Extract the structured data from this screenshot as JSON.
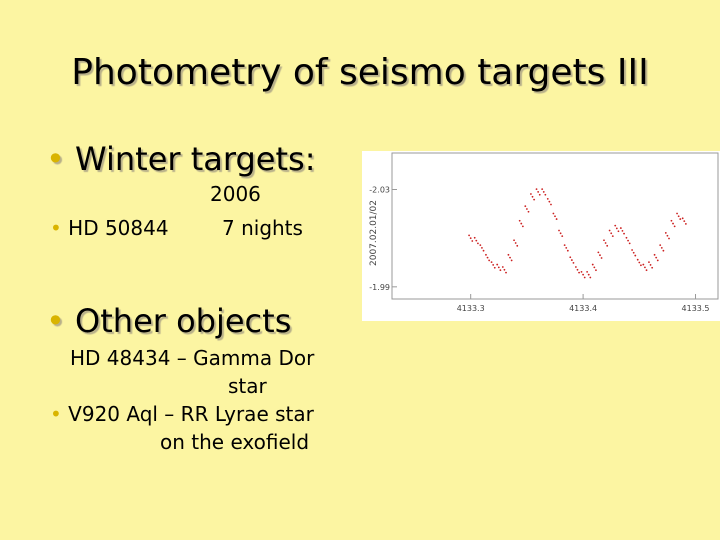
{
  "slide": {
    "title": "Photometry of seismo targets III",
    "bullet1": "Winter targets:",
    "year": "2006",
    "star1": "HD 50844",
    "nights": "7 nights",
    "bullet2": "Other objects",
    "line1": "HD 48434 – Gamma Dor",
    "line2": "star",
    "line3": "V920 Aql – RR Lyrae star",
    "line4": "on the exofield"
  },
  "chart_data": {
    "type": "scatter",
    "ylabel": "2007.02.01/02",
    "xticks": [
      "4133.3",
      "4133.4",
      "4133.5"
    ],
    "yticks": [
      "-2.03",
      "-1.99"
    ],
    "series": [
      {
        "color": "#cc2222",
        "points": [
          [
            4133.3,
            -2.01
          ],
          [
            4133.305,
            -2.009
          ],
          [
            4133.31,
            -2.006
          ],
          [
            4133.315,
            -2.002
          ],
          [
            4133.32,
            -1.999
          ],
          [
            4133.325,
            -1.998
          ],
          [
            4133.33,
            -1.997
          ],
          [
            4133.335,
            -2.002
          ],
          [
            4133.34,
            -2.008
          ],
          [
            4133.345,
            -2.016
          ],
          [
            4133.35,
            -2.022
          ],
          [
            4133.355,
            -2.027
          ],
          [
            4133.36,
            -2.029
          ],
          [
            4133.365,
            -2.029
          ],
          [
            4133.37,
            -2.025
          ],
          [
            4133.375,
            -2.019
          ],
          [
            4133.38,
            -2.012
          ],
          [
            4133.385,
            -2.006
          ],
          [
            4133.39,
            -2.001
          ],
          [
            4133.395,
            -1.997
          ],
          [
            4133.4,
            -1.995
          ],
          [
            4133.405,
            -1.995
          ],
          [
            4133.41,
            -1.998
          ],
          [
            4133.415,
            -2.003
          ],
          [
            4133.42,
            -2.008
          ],
          [
            4133.425,
            -2.012
          ],
          [
            4133.43,
            -2.014
          ],
          [
            4133.435,
            -2.013
          ],
          [
            4133.44,
            -2.009
          ],
          [
            4133.445,
            -2.004
          ],
          [
            4133.45,
            -2.0
          ],
          [
            4133.455,
            -1.998
          ],
          [
            4133.46,
            -1.999
          ],
          [
            4133.465,
            -2.002
          ],
          [
            4133.47,
            -2.006
          ],
          [
            4133.475,
            -2.011
          ],
          [
            4133.48,
            -2.016
          ],
          [
            4133.485,
            -2.019
          ],
          [
            4133.49,
            -2.017
          ]
        ]
      }
    ]
  }
}
